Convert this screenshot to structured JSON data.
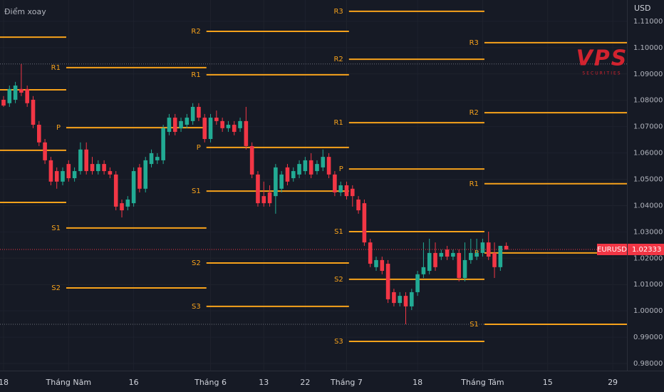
{
  "chart_data": {
    "type": "candlestick",
    "indicator": "Điểm xoay",
    "y_axis_label": "USD",
    "grid": true,
    "up_color": "#22ab94",
    "down_color": "#f23645",
    "pivot_color": "#f7a21b",
    "xlim": [
      -0.6,
      105.4
    ],
    "ylim": [
      0.9773,
      1.1181
    ],
    "x": [
      0,
      1,
      2,
      3,
      4,
      5,
      6,
      7,
      8,
      9,
      10,
      11,
      12,
      13,
      14,
      15,
      16,
      17,
      18,
      19,
      20,
      21,
      22,
      23,
      24,
      25,
      26,
      27,
      28,
      29,
      30,
      31,
      32,
      33,
      34,
      35,
      36,
      37,
      38,
      39,
      40,
      41,
      42,
      43,
      44,
      45,
      46,
      47,
      48,
      49,
      50,
      51,
      52,
      53,
      54,
      55,
      56,
      57,
      58,
      59,
      60,
      61,
      62,
      63,
      64,
      65,
      66,
      67,
      68,
      69,
      70,
      71,
      72,
      73,
      74,
      75,
      76,
      77,
      78,
      79,
      80,
      81,
      82,
      83,
      84,
      85
    ],
    "open": [
      1.0802,
      1.0789,
      1.0802,
      1.0843,
      1.0843,
      1.0802,
      1.0707,
      1.064,
      1.0572,
      1.0531,
      1.0491,
      1.0558,
      1.0504,
      1.0531,
      1.0613,
      1.0558,
      1.0531,
      1.0558,
      1.0531,
      1.0518,
      1.0409,
      1.0396,
      1.0409,
      1.0545,
      1.0464,
      1.0558,
      1.0572,
      1.0572,
      1.068,
      1.0734,
      1.0694,
      1.0707,
      1.0721,
      1.0775,
      1.0734,
      1.0653,
      1.0734,
      1.0721,
      1.0694,
      1.0707,
      1.0694,
      1.0721,
      1.0626,
      1.0518,
      1.0436,
      1.045,
      1.0436,
      1.0464,
      1.0545,
      1.0504,
      1.0518,
      1.0531,
      1.0572,
      1.0531,
      1.0545,
      1.0585,
      1.0518,
      1.045,
      1.0477,
      1.0464,
      1.0423,
      1.0409,
      1.026,
      1.0166,
      1.0193,
      1.0179,
      1.0071,
      1.003,
      1.0057,
      1.0017,
      1.0071,
      1.0139,
      1.0152,
      1.022,
      1.0206,
      1.0233,
      1.0206,
      1.022,
      1.0125,
      1.0193,
      1.0206,
      1.022,
      1.026,
      1.022,
      1.0166,
      1.0247
    ],
    "high": [
      1.0816,
      1.0856,
      1.087,
      1.0938,
      1.0856,
      1.0816,
      1.0721,
      1.0653,
      1.0585,
      1.0545,
      1.0545,
      1.0572,
      1.0545,
      1.064,
      1.064,
      1.0585,
      1.0572,
      1.0572,
      1.0545,
      1.0531,
      1.0423,
      1.0436,
      1.0545,
      1.0558,
      1.0585,
      1.0613,
      1.0599,
      1.0707,
      1.0748,
      1.0748,
      1.0734,
      1.0748,
      1.0789,
      1.0789,
      1.0748,
      1.0748,
      1.0761,
      1.0734,
      1.0721,
      1.0721,
      1.0734,
      1.0775,
      1.064,
      1.0531,
      1.0491,
      1.0477,
      1.0558,
      1.0531,
      1.0558,
      1.0545,
      1.0572,
      1.0585,
      1.0599,
      1.0572,
      1.0613,
      1.0599,
      1.0531,
      1.0491,
      1.0491,
      1.0477,
      1.0436,
      1.0423,
      1.0274,
      1.0206,
      1.0206,
      1.0193,
      1.0084,
      1.0071,
      1.0071,
      1.0084,
      1.0152,
      1.026,
      1.0274,
      1.026,
      1.0233,
      1.0247,
      1.0233,
      1.0233,
      1.026,
      1.0274,
      1.0274,
      1.0274,
      1.0301,
      1.026,
      1.0247,
      1.026
    ],
    "low": [
      1.0775,
      1.0775,
      1.0789,
      1.0816,
      1.0775,
      1.0694,
      1.0626,
      1.0558,
      1.0477,
      1.0464,
      1.0477,
      1.0491,
      1.0491,
      1.0518,
      1.0518,
      1.0518,
      1.0518,
      1.0518,
      1.0504,
      1.0382,
      1.0355,
      1.0382,
      1.0396,
      1.045,
      1.045,
      1.0545,
      1.0558,
      1.0558,
      1.0667,
      1.0667,
      1.068,
      1.0694,
      1.0707,
      1.0721,
      1.064,
      1.064,
      1.0707,
      1.068,
      1.068,
      1.0667,
      1.068,
      1.0613,
      1.0504,
      1.0396,
      1.0396,
      1.0396,
      1.0369,
      1.045,
      1.0477,
      1.0491,
      1.0504,
      1.0518,
      1.0504,
      1.0518,
      1.0531,
      1.0504,
      1.0436,
      1.0436,
      1.0423,
      1.0396,
      1.0369,
      1.0247,
      1.0166,
      1.0152,
      1.0139,
      1.003,
      1.0017,
      1.0017,
      0.9949,
      1.0003,
      1.0057,
      1.0125,
      1.0139,
      1.0152,
      1.0193,
      1.0193,
      1.0193,
      1.0112,
      1.0112,
      1.0179,
      1.0193,
      1.0206,
      1.0193,
      1.0125,
      1.0152,
      1.0233
    ],
    "close": [
      1.078,
      1.0843,
      1.0856,
      1.0829,
      1.0789,
      1.0707,
      1.064,
      1.0572,
      1.0491,
      1.0491,
      1.0531,
      1.0504,
      1.0531,
      1.0613,
      1.0531,
      1.0531,
      1.0558,
      1.0531,
      1.0518,
      1.0396,
      1.0382,
      1.0423,
      1.0531,
      1.0464,
      1.0572,
      1.0599,
      1.0585,
      1.0694,
      1.0734,
      1.068,
      1.0721,
      1.0734,
      1.0775,
      1.0734,
      1.0653,
      1.0734,
      1.0721,
      1.0694,
      1.0707,
      1.068,
      1.0721,
      1.0626,
      1.0518,
      1.0409,
      1.0409,
      1.0409,
      1.0545,
      1.0518,
      1.0491,
      1.0531,
      1.0558,
      1.0572,
      1.0518,
      1.0558,
      1.0585,
      1.0518,
      1.045,
      1.0477,
      1.0436,
      1.0436,
      1.0382,
      1.026,
      1.0179,
      1.0193,
      1.0152,
      1.0044,
      1.003,
      1.0057,
      1.0017,
      1.0071,
      1.0139,
      1.0166,
      1.022,
      1.0166,
      1.022,
      1.0206,
      1.022,
      1.0125,
      1.0193,
      1.022,
      1.022,
      1.026,
      1.0206,
      1.0166,
      1.0247,
      1.0233
    ],
    "xticks": [
      {
        "value": 0,
        "label": "18"
      },
      {
        "value": 11,
        "label": "Tháng Năm"
      },
      {
        "value": 22,
        "label": "16"
      },
      {
        "value": 35,
        "label": "Tháng 6"
      },
      {
        "value": 44,
        "label": "13"
      },
      {
        "value": 51,
        "label": "22"
      },
      {
        "value": 58,
        "label": "Tháng 7"
      },
      {
        "value": 70,
        "label": "18"
      },
      {
        "value": 81,
        "label": "Tháng Tám"
      },
      {
        "value": 92,
        "label": "15"
      },
      {
        "value": 103,
        "label": "29"
      }
    ],
    "yticks": [
      {
        "value": 0.98,
        "label": "0.98000"
      },
      {
        "value": 0.99,
        "label": "0.99000"
      },
      {
        "value": 1.0,
        "label": "1.00000"
      },
      {
        "value": 1.01,
        "label": "1.01000"
      },
      {
        "value": 1.02,
        "label": "1.02000"
      },
      {
        "value": 1.03,
        "label": "1.03000"
      },
      {
        "value": 1.04,
        "label": "1.04000"
      },
      {
        "value": 1.05,
        "label": "1.05000"
      },
      {
        "value": 1.06,
        "label": "1.06000"
      },
      {
        "value": 1.07,
        "label": "1.07000"
      },
      {
        "value": 1.08,
        "label": "1.08000"
      },
      {
        "value": 1.09,
        "label": "1.09000"
      },
      {
        "value": 1.1,
        "label": "1.10000"
      },
      {
        "value": 1.11,
        "label": "1.11000"
      }
    ],
    "pivots": [
      {
        "start": -0.6,
        "end": 10.6,
        "levels": [
          {
            "value": 1.104
          },
          {
            "value": 1.084
          },
          {
            "value": 1.061
          },
          {
            "value": 1.0412
          }
        ]
      },
      {
        "start": 10.6,
        "end": 34.3,
        "levels": [
          {
            "label": "R1",
            "value": 1.0924
          },
          {
            "label": "P",
            "value": 1.0696
          },
          {
            "label": "S1",
            "value": 1.0315
          },
          {
            "label": "S2",
            "value": 1.0087
          }
        ]
      },
      {
        "start": 34.3,
        "end": 58.4,
        "levels": [
          {
            "label": "R2",
            "value": 1.1062
          },
          {
            "label": "R1",
            "value": 1.0897
          },
          {
            "label": "P",
            "value": 1.0621
          },
          {
            "label": "S1",
            "value": 1.0455
          },
          {
            "label": "S2",
            "value": 1.0182
          },
          {
            "label": "S3",
            "value": 1.0017
          }
        ]
      },
      {
        "start": 58.4,
        "end": 81.3,
        "levels": [
          {
            "label": "R3",
            "value": 1.1138
          },
          {
            "label": "R2",
            "value": 1.0956
          },
          {
            "label": "R1",
            "value": 1.0715
          },
          {
            "label": "P",
            "value": 1.0539
          },
          {
            "label": "S1",
            "value": 1.0301
          },
          {
            "label": "S2",
            "value": 1.012
          },
          {
            "label": "S3",
            "value": 0.9884
          }
        ]
      },
      {
        "start": 81.3,
        "end": 105.4,
        "levels": [
          {
            "label": "R3",
            "value": 1.1019
          },
          {
            "label": "R2",
            "value": 1.0753
          },
          {
            "label": "R1",
            "value": 1.0483
          },
          {
            "label": "P",
            "value": 1.022
          },
          {
            "label": "S1",
            "value": 0.9949
          }
        ]
      }
    ],
    "reference_lines": [
      1.0938,
      0.9949
    ],
    "last_price": {
      "symbol": "EURUSD",
      "value": 1.02333
    },
    "watermark": {
      "logo": "VPS",
      "sub": "SECURITIES"
    }
  }
}
